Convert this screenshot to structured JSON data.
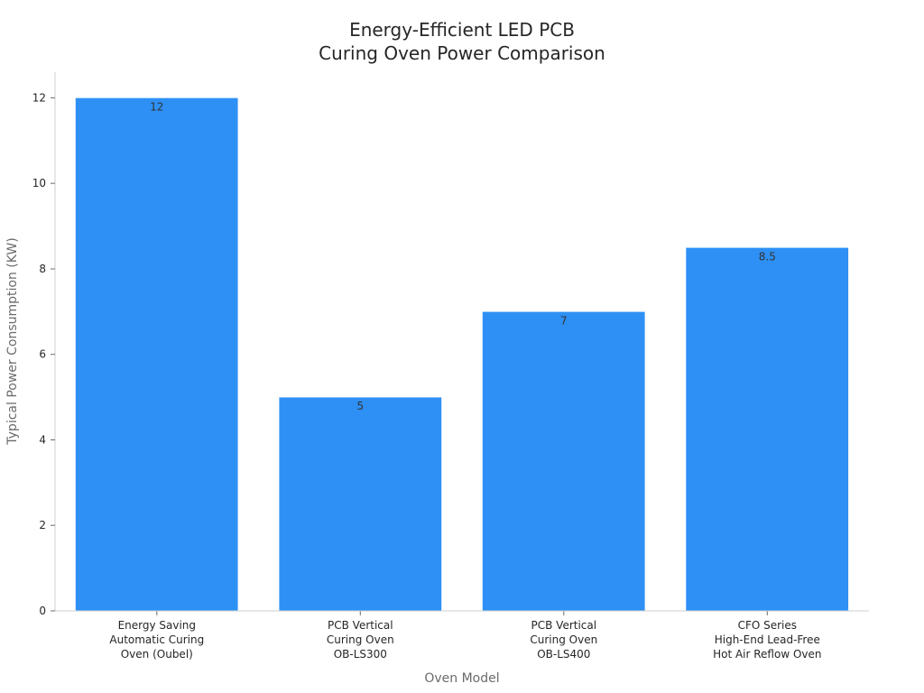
{
  "chart_data": {
    "type": "bar",
    "title": [
      "Energy-Efficient LED PCB",
      "Curing Oven Power Comparison"
    ],
    "xlabel": "Oven Model",
    "ylabel": "Typical Power Consumption (KW)",
    "categories": [
      [
        "Energy Saving",
        "Automatic Curing",
        "Oven (Oubel)"
      ],
      [
        "PCB Vertical",
        "Curing Oven",
        "OB-LS300"
      ],
      [
        "PCB Vertical",
        "Curing Oven",
        "OB-LS400"
      ],
      [
        "CFO Series",
        "High-End Lead-Free",
        "Hot Air Reflow Oven"
      ]
    ],
    "values": [
      12,
      5,
      7,
      8.5
    ],
    "data_labels": [
      "12",
      "5",
      "7",
      "8.5"
    ],
    "yticks": [
      0,
      2,
      4,
      6,
      8,
      10,
      12
    ],
    "ylim": [
      0,
      12.6
    ],
    "grid": false,
    "bar_color": "#2e90f5"
  }
}
